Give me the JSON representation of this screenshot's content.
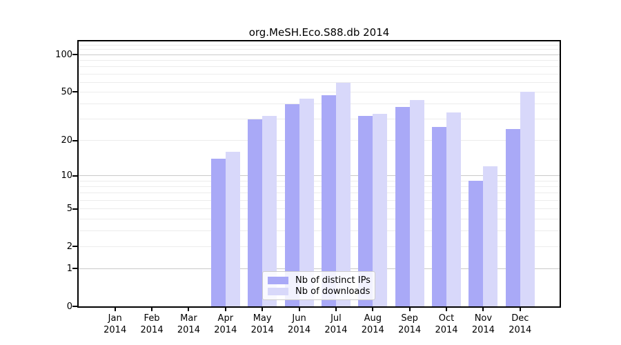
{
  "chart_data": {
    "type": "bar",
    "title": "org.MeSH.Eco.S88.db 2014",
    "categories": [
      "Jan",
      "Feb",
      "Mar",
      "Apr",
      "May",
      "Jun",
      "Jul",
      "Aug",
      "Sep",
      "Oct",
      "Nov",
      "Dec"
    ],
    "year_label": "2014",
    "series": [
      {
        "name": "Nb of distinct IPs",
        "color": "#a9a9f7",
        "values": [
          0,
          0,
          0,
          14,
          30,
          40,
          47,
          32,
          38,
          26,
          9,
          25
        ]
      },
      {
        "name": "Nb of downloads",
        "color": "#d8d8fa",
        "values": [
          0,
          0,
          0,
          16,
          32,
          44,
          59,
          33,
          43,
          34,
          12,
          50
        ]
      }
    ],
    "xlabel": "",
    "ylabel": "",
    "yscale": "log1p",
    "ylim": [
      0,
      128
    ],
    "yticks": [
      0,
      1,
      2,
      5,
      10,
      20,
      50,
      100
    ],
    "grid_minor_values": [
      2,
      3,
      4,
      5,
      6,
      7,
      8,
      9,
      20,
      30,
      40,
      50,
      60,
      70,
      80,
      90,
      110,
      120
    ],
    "grid_major_values": [
      1,
      10,
      100
    ],
    "grid": "horizontal",
    "legend_position": "bottom-center",
    "colors": {
      "bar_dark": "#a9a9f7",
      "bar_light": "#d8d8fa",
      "grid_minor": "#ececec",
      "grid_major": "#c9c9c9",
      "axis": "#000000",
      "background": "#ffffff"
    }
  }
}
